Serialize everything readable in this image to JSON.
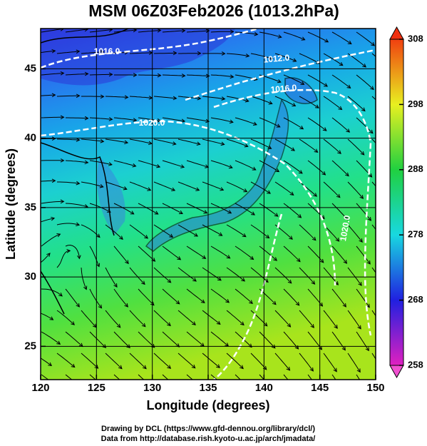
{
  "chart_data": {
    "type": "map",
    "title": "MSM 06Z03Feb2026 (1013.2hPa)",
    "x_label": "Longitude (degrees)",
    "y_label": "Latitude  (degrees)",
    "xlim": [
      120,
      150
    ],
    "ylim": [
      22.6,
      47.9
    ],
    "xticks": [
      120,
      125,
      130,
      135,
      140,
      145,
      150
    ],
    "yticks": [
      25,
      30,
      35,
      40,
      45
    ],
    "grid": true,
    "colorbar": {
      "lim": [
        258,
        308
      ],
      "ticks": [
        258,
        268,
        278,
        288,
        298,
        308
      ]
    },
    "contour_labels": [
      {
        "value": 1016,
        "label": "1016.0"
      },
      {
        "value": 1012,
        "label": "1012.0"
      },
      {
        "value": 1016,
        "label": "1016.0"
      },
      {
        "value": 1020,
        "label": "1020.0"
      },
      {
        "value": 1020,
        "label": "1020.0"
      }
    ],
    "credits": [
      "Drawing by DCL (https://www.gfd-dennou.org/library/dcl/)",
      "Data from http://database.rish.kyoto-u.ac.jp/arch/jmadata/"
    ]
  }
}
